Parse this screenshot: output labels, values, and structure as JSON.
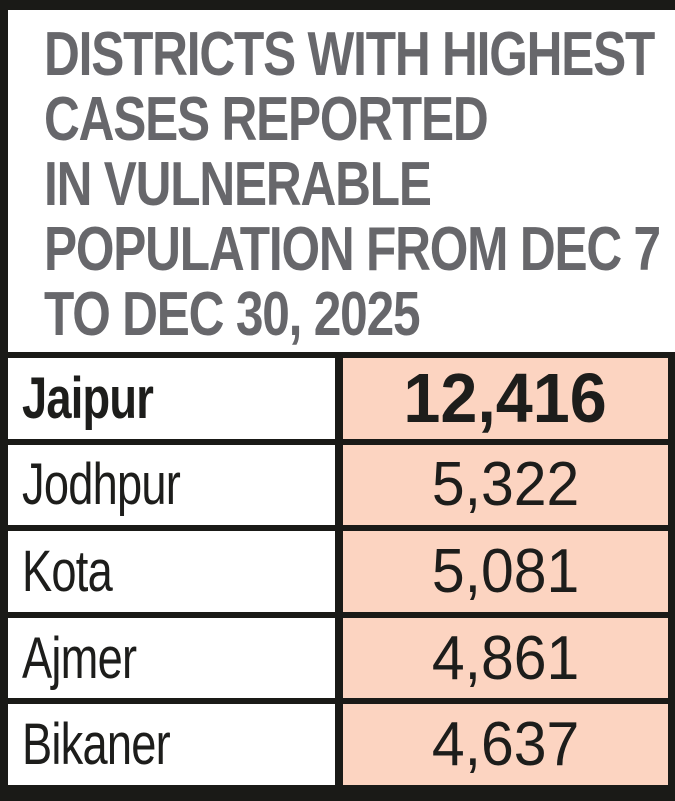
{
  "header": {
    "title_lines": [
      "DISTRICTS WITH HIGHEST",
      "CASES REPORTED",
      "IN VULNERABLE",
      "POPULATION FROM DEC 7",
      "TO DEC 30, 2025"
    ]
  },
  "table": {
    "rows": [
      {
        "district": "Jaipur",
        "value": "12,416"
      },
      {
        "district": "Jodhpur",
        "value": "5,322"
      },
      {
        "district": "Kota",
        "value": "5,081"
      },
      {
        "district": "Ajmer",
        "value": "4,861"
      },
      {
        "district": "Bikaner",
        "value": "4,637"
      }
    ]
  },
  "colors": {
    "title_gray": "#67676b",
    "value_cell_pink": "#fcd4c1",
    "border_black": "#1a1a17",
    "text_black": "#1d1d1b"
  },
  "chart_data": {
    "type": "table",
    "title": "DISTRICTS WITH HIGHEST CASES REPORTED IN VULNERABLE POPULATION FROM DEC 7 TO DEC 30, 2025",
    "categories": [
      "Jaipur",
      "Jodhpur",
      "Kota",
      "Ajmer",
      "Bikaner"
    ],
    "values": [
      12416,
      5322,
      5081,
      4861,
      4637
    ],
    "columns": [
      "district",
      "cases"
    ],
    "legend": "none",
    "grid": "table-borders"
  }
}
